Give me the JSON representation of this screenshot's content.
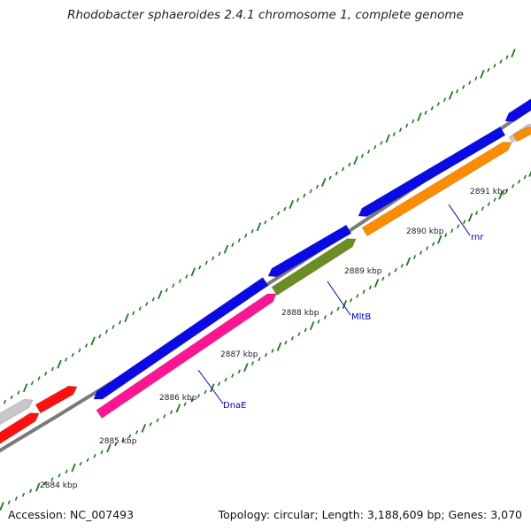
{
  "title": "Rhodobacter sphaeroides 2.4.1 chromosome 1, complete genome",
  "footer": {
    "accession": "Accession: NC_007493",
    "summary": "Topology: circular; Length: 3,188,609 bp; Genes: 3,070"
  },
  "ticks": {
    "labels": [
      "2884 kbp",
      "2885 kbp",
      "2886 kbp",
      "2887 kbp",
      "2888 kbp",
      "2889 kbp",
      "2890 kbp",
      "2891 kbp"
    ]
  },
  "genes": {
    "labels": [
      "DnaE",
      "MltB",
      "rnr"
    ]
  },
  "colors": {
    "backbone": "#7b7b7b",
    "tick": "#1a7a1a",
    "blue": "#0a0ae6",
    "red": "#ff1010",
    "grey": "#c8c8c8",
    "pink": "#ff1493",
    "olive": "#6b8e23",
    "orange": "#ff8c00",
    "label": "#0000cc"
  }
}
